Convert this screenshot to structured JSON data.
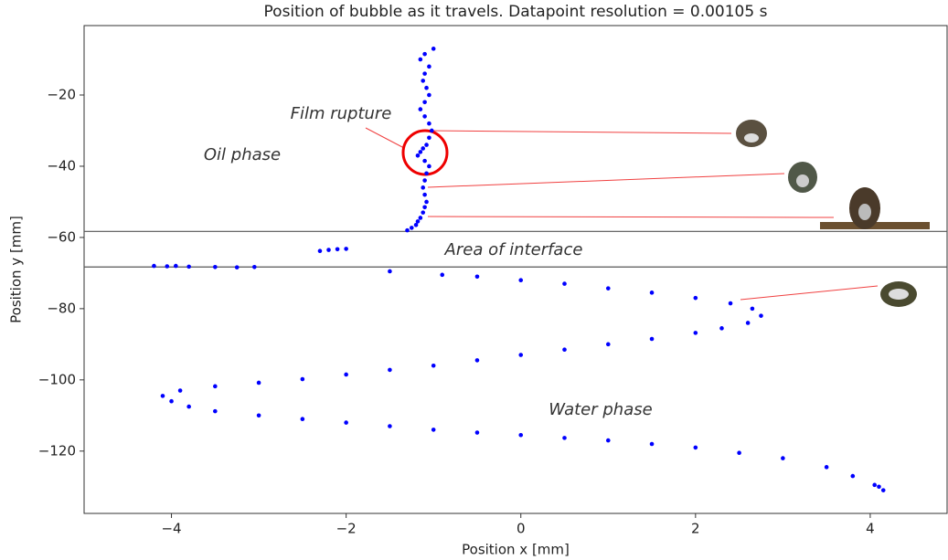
{
  "chart_data": {
    "type": "scatter",
    "title": "Position of bubble as it travels. Datapoint resolution = 0.00105 s",
    "xlabel": "Position x [mm]",
    "ylabel": "Position y [mm]",
    "color": "#0000ff",
    "xlim": [
      -5,
      4.88
    ],
    "ylim": [
      -137.5,
      -0.5
    ],
    "xticks": [
      {
        "value": -4,
        "label": "−4"
      },
      {
        "value": -2,
        "label": "−2"
      },
      0,
      2,
      4
    ],
    "yticks": [
      {
        "value": -20,
        "label": "−20"
      },
      {
        "value": -40,
        "label": "−40"
      },
      {
        "value": -60,
        "label": "−60"
      },
      {
        "value": -80,
        "label": "−80"
      },
      {
        "value": -100,
        "label": "−100"
      },
      {
        "value": -120,
        "label": "−120"
      }
    ],
    "reference_lines": [
      -58.3,
      -68.3
    ],
    "annotations": [
      "Film rupture",
      "Oil phase",
      "Area of interface",
      "Water phase"
    ],
    "x": [
      -1.0,
      -1.1,
      -1.15,
      -1.05,
      -1.1,
      -1.12,
      -1.08,
      -1.05,
      -1.1,
      -1.15,
      -1.1,
      -1.05,
      -1.02,
      -1.05,
      -1.08,
      -1.12,
      -1.15,
      -1.18,
      -1.1,
      -1.05,
      -1.08,
      -1.1,
      -1.12,
      -1.1,
      -1.08,
      -1.1,
      -1.12,
      -1.15,
      -1.18,
      -1.2,
      -1.25,
      -1.3,
      -4.2,
      -4.05,
      -3.95,
      -3.8,
      -3.5,
      -3.25,
      -3.05,
      -2.3,
      -2.2,
      -2.1,
      -2.0,
      -1.5,
      -0.9,
      -0.5,
      0,
      0.5,
      1,
      1.5,
      2,
      2.4,
      2.65,
      2.75,
      2.6,
      2.3,
      2,
      1.5,
      1,
      0.5,
      0,
      -0.5,
      -1,
      -1.5,
      -2,
      -2.5,
      -3,
      -3.5,
      -3.9,
      -4.1,
      -4,
      -3.8,
      -3.5,
      -3,
      -2.5,
      -2,
      -1.5,
      -1,
      -0.5,
      0,
      0.5,
      1,
      1.5,
      2,
      2.5,
      3,
      3.5,
      3.8,
      4.05,
      4.15,
      4.1
    ],
    "y": [
      -7,
      -8.5,
      -10,
      -12,
      -14,
      -16,
      -18,
      -20,
      -22,
      -24,
      -26,
      -28,
      -30,
      -32,
      -34,
      -35,
      -36,
      -37,
      -38.5,
      -40,
      -42,
      -44,
      -46,
      -48,
      -50,
      -51.5,
      -53,
      -54.5,
      -55.5,
      -56.5,
      -57.3,
      -58,
      -68,
      -68.1,
      -68,
      -68.2,
      -68.3,
      -68.4,
      -68.3,
      -63.8,
      -63.5,
      -63.3,
      -63.2,
      -69.5,
      -70.5,
      -71,
      -72,
      -73,
      -74.3,
      -75.5,
      -77,
      -78.5,
      -80,
      -82,
      -84,
      -85.5,
      -86.8,
      -88.5,
      -90,
      -91.5,
      -93,
      -94.5,
      -96,
      -97.2,
      -98.5,
      -99.8,
      -100.8,
      -101.8,
      -103,
      -104.5,
      -106,
      -107.5,
      -108.8,
      -110,
      -111,
      -112,
      -113,
      -114,
      -114.8,
      -115.5,
      -116.3,
      -117,
      -118,
      -119,
      -120.5,
      -122,
      -124.5,
      -127,
      -129.5,
      -131,
      -130
    ]
  }
}
